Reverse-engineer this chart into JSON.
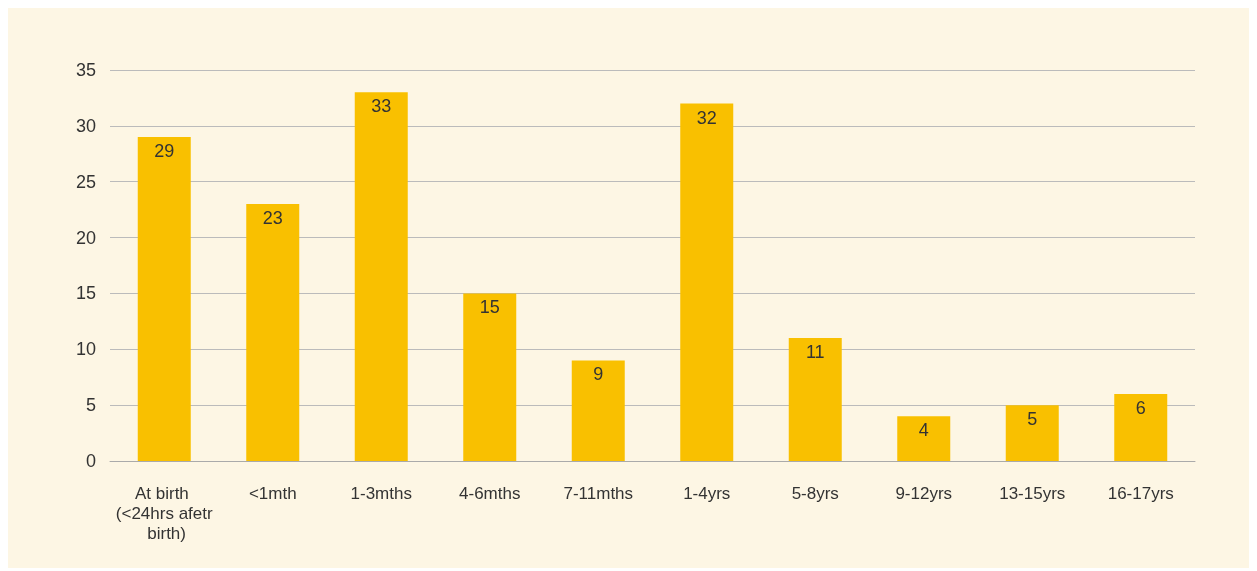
{
  "chart_data": {
    "type": "bar",
    "categories": [
      "At birth (<24hrs afetr birth)",
      "<1mth",
      "1-3mths",
      "4-6mths",
      "7-11mths",
      "1-4yrs",
      "5-8yrs",
      "9-12yrs",
      "13-15yrs",
      "16-17yrs"
    ],
    "values": [
      29,
      23,
      33,
      15,
      9,
      32,
      11,
      4,
      5,
      6
    ],
    "color": "#f9c000",
    "ylim": [
      0,
      35
    ],
    "yticks": [
      0,
      5,
      10,
      15,
      20,
      25,
      30,
      35
    ],
    "grid": "y",
    "data_labels": true
  }
}
